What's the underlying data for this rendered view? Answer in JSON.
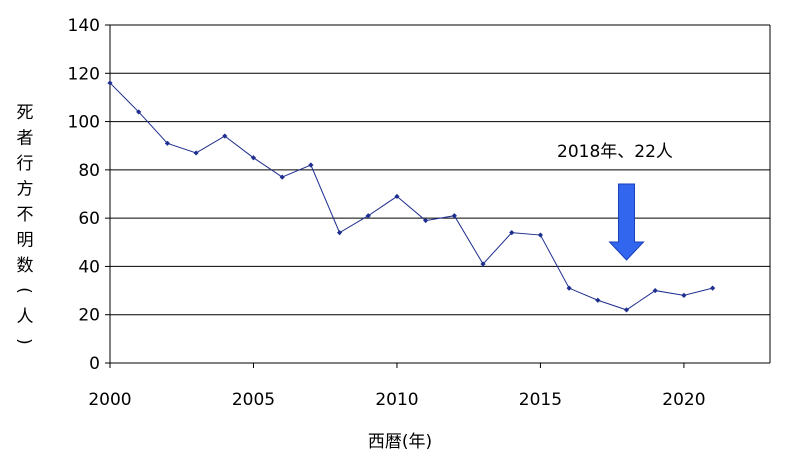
{
  "chart_data": {
    "type": "line",
    "title": "",
    "xlabel": "西暦(年)",
    "ylabel": "死者行方不明数(人)",
    "xlim": [
      2000,
      2023
    ],
    "ylim": [
      0,
      140
    ],
    "x_ticks": [
      2000,
      2005,
      2010,
      2015,
      2020
    ],
    "y_ticks": [
      0,
      20,
      40,
      60,
      80,
      100,
      120,
      140
    ],
    "grid": true,
    "legend": "none",
    "series": [
      {
        "color": "#1f2f8f",
        "x": [
          2000,
          2001,
          2002,
          2003,
          2004,
          2005,
          2006,
          2007,
          2008,
          2009,
          2010,
          2011,
          2012,
          2013,
          2014,
          2015,
          2016,
          2017,
          2018,
          2019,
          2020,
          2021
        ],
        "values": [
          116,
          104,
          91,
          87,
          94,
          85,
          77,
          82,
          54,
          61,
          69,
          59,
          61,
          41,
          54,
          53,
          31,
          26,
          22,
          30,
          28,
          31
        ]
      }
    ],
    "annotations": [
      {
        "text": "2018年、22人",
        "points_to_x": 2018,
        "arrow_color": "#3366ee"
      }
    ]
  }
}
